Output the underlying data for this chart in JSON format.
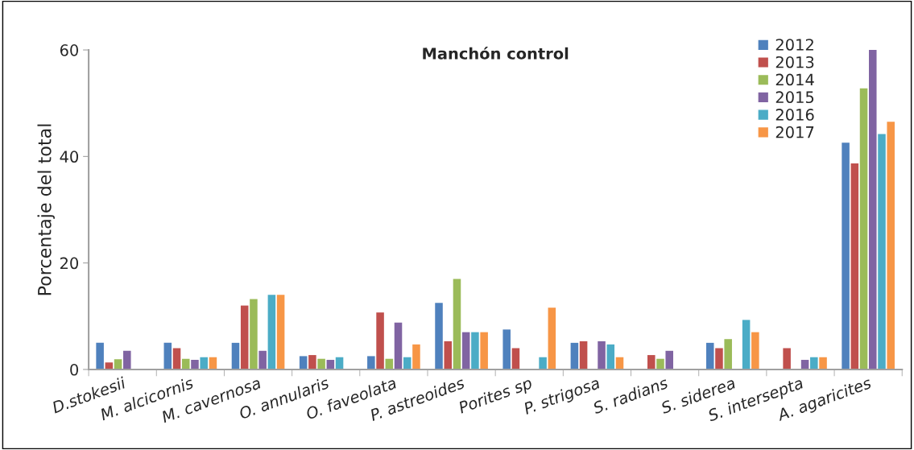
{
  "chart_data": {
    "type": "bar",
    "title": "Manchón control",
    "ylabel": "Porcentaje del total",
    "categories": [
      "D.stokesii",
      "M. alcicornis",
      "M. cavernosa",
      "O. annularis",
      "O. faveolata",
      "P. astreoides",
      "Porites sp",
      "P. strigosa",
      "S. radians",
      "S. siderea",
      "S. intersepta",
      "A. agaricites"
    ],
    "series": [
      {
        "name": "2012",
        "color": "#4f81bd",
        "values": [
          5,
          5,
          5,
          2.5,
          2.5,
          12.5,
          7.5,
          5,
          null,
          5,
          null,
          42.6
        ]
      },
      {
        "name": "2013",
        "color": "#c0504d",
        "values": [
          1.3,
          4,
          12,
          2.7,
          10.7,
          5.3,
          4,
          5.3,
          2.7,
          4,
          4,
          38.7
        ]
      },
      {
        "name": "2014",
        "color": "#9bbb59",
        "values": [
          1.9,
          2,
          13.2,
          2,
          2,
          17,
          null,
          null,
          2,
          5.7,
          null,
          52.8
        ]
      },
      {
        "name": "2015",
        "color": "#8064a2",
        "values": [
          3.5,
          1.8,
          3.5,
          1.8,
          8.8,
          7,
          null,
          5.3,
          3.5,
          null,
          1.8,
          60
        ]
      },
      {
        "name": "2016",
        "color": "#4bacc6",
        "values": [
          null,
          2.3,
          14,
          2.3,
          2.3,
          7,
          2.3,
          4.7,
          null,
          9.3,
          2.3,
          44.2
        ]
      },
      {
        "name": "2017",
        "color": "#f79646",
        "values": [
          null,
          2.3,
          14,
          null,
          4.7,
          7,
          11.6,
          2.3,
          null,
          7,
          2.3,
          46.5
        ]
      }
    ],
    "ylim": [
      0,
      60
    ],
    "yticks": [
      0,
      20,
      40,
      60
    ],
    "grid": false,
    "legend": "top right"
  }
}
